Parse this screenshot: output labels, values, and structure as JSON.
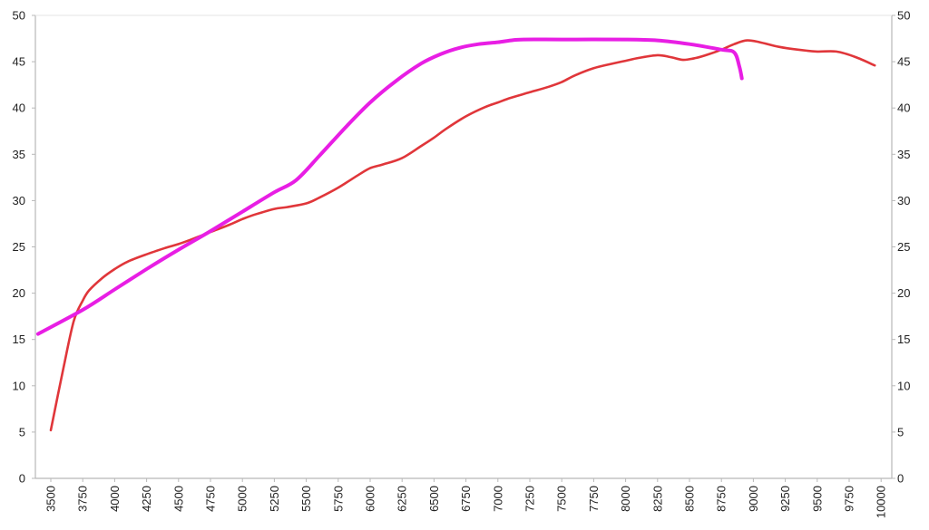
{
  "chart_data": {
    "type": "line",
    "title": "",
    "xlabel": "",
    "ylabel": "",
    "xlim": [
      3400,
      10050
    ],
    "ylim": [
      0,
      50
    ],
    "grid": false,
    "legend": "none",
    "x_ticks": [
      3500,
      3750,
      4000,
      4250,
      4500,
      4750,
      5000,
      5250,
      5500,
      5750,
      6000,
      6250,
      6500,
      6750,
      7000,
      7250,
      7500,
      7750,
      8000,
      8250,
      8500,
      8750,
      9000,
      9250,
      9500,
      9750,
      10000
    ],
    "y_ticks": [
      0,
      5,
      10,
      15,
      20,
      25,
      30,
      35,
      40,
      45,
      50
    ],
    "colors": {
      "series_red": "#e0363a",
      "series_magenta": "#e81ee4",
      "axis": "#b8b8b8"
    },
    "series": [
      {
        "color": "#e0363a",
        "x": [
          3500,
          3600,
          3680,
          3750,
          3800,
          3900,
          4000,
          4100,
          4250,
          4400,
          4500,
          4600,
          4750,
          4900,
          5000,
          5100,
          5250,
          5350,
          5500,
          5600,
          5750,
          5900,
          6000,
          6100,
          6250,
          6400,
          6500,
          6600,
          6750,
          6900,
          7000,
          7100,
          7250,
          7400,
          7500,
          7600,
          7750,
          7900,
          8000,
          8100,
          8250,
          8350,
          8450,
          8550,
          8650,
          8750,
          8850,
          8950,
          9050,
          9200,
          9350,
          9500,
          9650,
          9800,
          9950
        ],
        "y": [
          5.2,
          12,
          17,
          19.2,
          20.3,
          21.6,
          22.6,
          23.4,
          24.2,
          24.9,
          25.3,
          25.8,
          26.6,
          27.4,
          28,
          28.5,
          29.1,
          29.3,
          29.7,
          30.3,
          31.4,
          32.7,
          33.5,
          33.9,
          34.6,
          35.9,
          36.8,
          37.8,
          39.1,
          40.1,
          40.6,
          41.1,
          41.7,
          42.3,
          42.8,
          43.5,
          44.3,
          44.8,
          45.1,
          45.4,
          45.7,
          45.5,
          45.2,
          45.4,
          45.8,
          46.3,
          46.9,
          47.3,
          47.1,
          46.6,
          46.3,
          46.1,
          46.1,
          45.5,
          44.6
        ]
      },
      {
        "color": "#e81ee4",
        "x": [
          3400,
          3750,
          4000,
          4250,
          4500,
          4750,
          5000,
          5250,
          5420,
          5600,
          5800,
          6000,
          6200,
          6400,
          6550,
          6700,
          6850,
          7000,
          7100,
          7200,
          7500,
          8000,
          8250,
          8500,
          8750,
          8850,
          8890,
          8910
        ],
        "y": [
          15.6,
          18.2,
          20.4,
          22.6,
          24.7,
          26.7,
          28.8,
          30.9,
          32.2,
          34.8,
          37.8,
          40.6,
          42.9,
          44.8,
          45.8,
          46.5,
          46.9,
          47.1,
          47.3,
          47.4,
          47.4,
          47.4,
          47.3,
          46.9,
          46.3,
          46.0,
          44.5,
          43.2
        ]
      }
    ]
  }
}
